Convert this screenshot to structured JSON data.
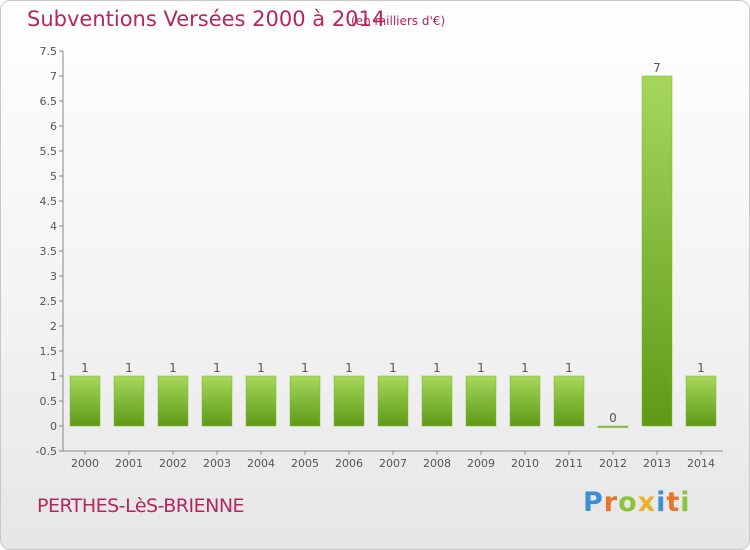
{
  "header": {
    "title": "Subventions Versées 2000 à 2014",
    "unit": "(en milliers d'€)"
  },
  "footer": {
    "commune": "PERTHES-LèS-BRIENNE",
    "logo": "Proxiti"
  },
  "colors": {
    "bar_light": "#a6d75c",
    "bar_dark": "#5e9a16",
    "title": "#b5265e",
    "logo_letters": [
      "#3b8fd9",
      "#e8732a",
      "#8ac43f",
      "#e8b12a",
      "#3b8fd9",
      "#e8732a",
      "#8ac43f"
    ]
  },
  "chart_data": {
    "type": "bar",
    "title": "Subventions Versées 2000 à 2014",
    "categories": [
      "2000",
      "2001",
      "2002",
      "2003",
      "2004",
      "2005",
      "2006",
      "2007",
      "2008",
      "2009",
      "2010",
      "2011",
      "2012",
      "2013",
      "2014"
    ],
    "values": [
      1,
      1,
      1,
      1,
      1,
      1,
      1,
      1,
      1,
      1,
      1,
      1,
      0,
      7,
      1
    ],
    "yticks": [
      "-0.5",
      "0",
      "0.5",
      "1",
      "1.5",
      "2",
      "2.5",
      "3",
      "3.5",
      "4",
      "4.5",
      "5",
      "5.5",
      "6",
      "6.5",
      "7",
      "7.5"
    ],
    "ylim": [
      -0.5,
      7.5
    ],
    "grid": false,
    "legend": "none"
  }
}
